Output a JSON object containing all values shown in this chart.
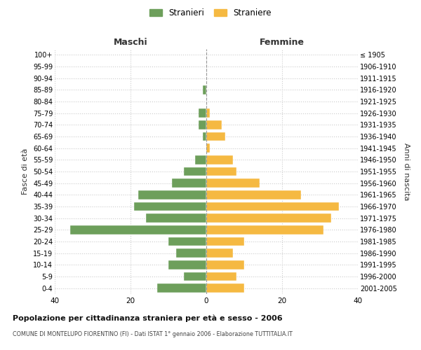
{
  "age_groups": [
    "0-4",
    "5-9",
    "10-14",
    "15-19",
    "20-24",
    "25-29",
    "30-34",
    "35-39",
    "40-44",
    "45-49",
    "50-54",
    "55-59",
    "60-64",
    "65-69",
    "70-74",
    "75-79",
    "80-84",
    "85-89",
    "90-94",
    "95-99",
    "100+"
  ],
  "birth_years": [
    "2001-2005",
    "1996-2000",
    "1991-1995",
    "1986-1990",
    "1981-1985",
    "1976-1980",
    "1971-1975",
    "1966-1970",
    "1961-1965",
    "1956-1960",
    "1951-1955",
    "1946-1950",
    "1941-1945",
    "1936-1940",
    "1931-1935",
    "1926-1930",
    "1921-1925",
    "1916-1920",
    "1911-1915",
    "1906-1910",
    "≤ 1905"
  ],
  "maschi": [
    13,
    6,
    10,
    8,
    10,
    36,
    16,
    19,
    18,
    9,
    6,
    3,
    0,
    1,
    2,
    2,
    0,
    1,
    0,
    0,
    0
  ],
  "femmine": [
    10,
    8,
    10,
    7,
    10,
    31,
    33,
    35,
    25,
    14,
    8,
    7,
    1,
    5,
    4,
    1,
    0,
    0,
    0,
    0,
    0
  ],
  "color_maschi": "#6d9f5b",
  "color_femmine": "#f5b942",
  "title": "Popolazione per cittadinanza straniera per età e sesso - 2006",
  "subtitle": "COMUNE DI MONTELUPO FIORENTINO (FI) - Dati ISTAT 1° gennaio 2006 - Elaborazione TUTTITALIA.IT",
  "header_left": "Maschi",
  "header_right": "Femmine",
  "ylabel_left": "Fasce di età",
  "ylabel_right": "Anni di nascita",
  "legend_maschi": "Stranieri",
  "legend_femmine": "Straniere",
  "xlim": 40,
  "background_color": "#ffffff",
  "grid_color": "#cccccc"
}
